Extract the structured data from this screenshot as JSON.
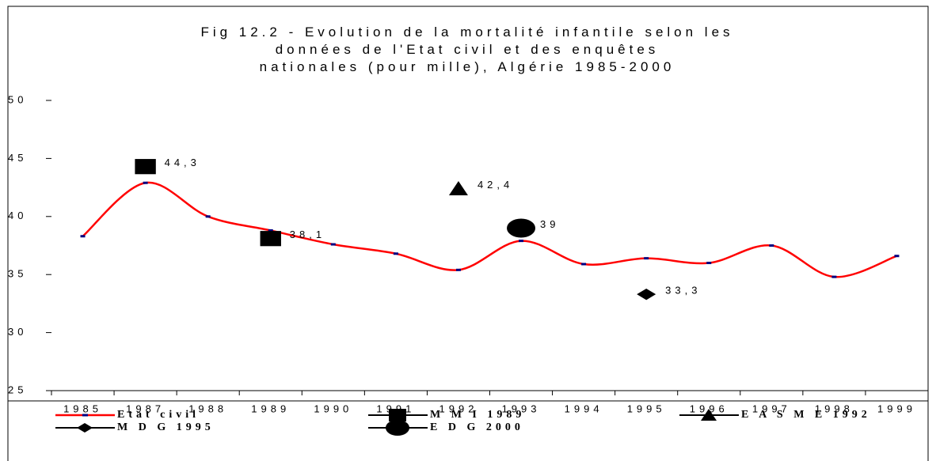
{
  "chart_data": {
    "type": "line",
    "title": "Fig 12.2 - Evolution de la mortalité infantile selon les\ndonnées de l'Etat civil et des enquêtes\nnationales (pour mille), Algérie 1985-2000",
    "categories": [
      "1985",
      "1987",
      "1988",
      "1989",
      "1990",
      "1991",
      "1992",
      "1993",
      "1994",
      "1995",
      "1996",
      "1997",
      "1998",
      "1999"
    ],
    "ylim": [
      25,
      50
    ],
    "yticks": [
      25,
      30,
      35,
      40,
      45,
      50
    ],
    "series": [
      {
        "name": "Etat civil",
        "color": "#ff0000",
        "marker": "line",
        "values": [
          38.3,
          42.9,
          40.0,
          38.8,
          37.6,
          36.8,
          35.4,
          37.9,
          35.9,
          36.4,
          36.0,
          37.5,
          34.8,
          36.6
        ]
      },
      {
        "name": "M M I 1989",
        "color": "#000000",
        "marker": "square",
        "values": [
          null,
          44.3,
          null,
          38.1,
          null,
          null,
          null,
          null,
          null,
          null,
          null,
          null,
          null,
          null
        ],
        "value_labels": [
          null,
          "44,3",
          null,
          "38,1",
          null,
          null,
          null,
          null,
          null,
          null,
          null,
          null,
          null,
          null
        ]
      },
      {
        "name": "E A S M E 1992",
        "color": "#000000",
        "marker": "triangle",
        "values": [
          null,
          null,
          null,
          null,
          null,
          null,
          42.4,
          null,
          null,
          null,
          null,
          null,
          null,
          null
        ],
        "value_labels": [
          null,
          null,
          null,
          null,
          null,
          null,
          "42,4",
          null,
          null,
          null,
          null,
          null,
          null,
          null
        ]
      },
      {
        "name": "M D G 1995",
        "color": "#000000",
        "marker": "diamond",
        "values": [
          null,
          null,
          null,
          null,
          null,
          null,
          null,
          null,
          null,
          33.3,
          null,
          null,
          null,
          null
        ],
        "value_labels": [
          null,
          null,
          null,
          null,
          null,
          null,
          null,
          null,
          null,
          "33,3",
          null,
          null,
          null,
          null
        ]
      },
      {
        "name": "E D G 2000",
        "color": "#000000",
        "marker": "ellipse",
        "values": [
          null,
          null,
          null,
          null,
          null,
          null,
          null,
          39,
          null,
          null,
          null,
          null,
          null,
          null
        ]
      }
    ]
  }
}
